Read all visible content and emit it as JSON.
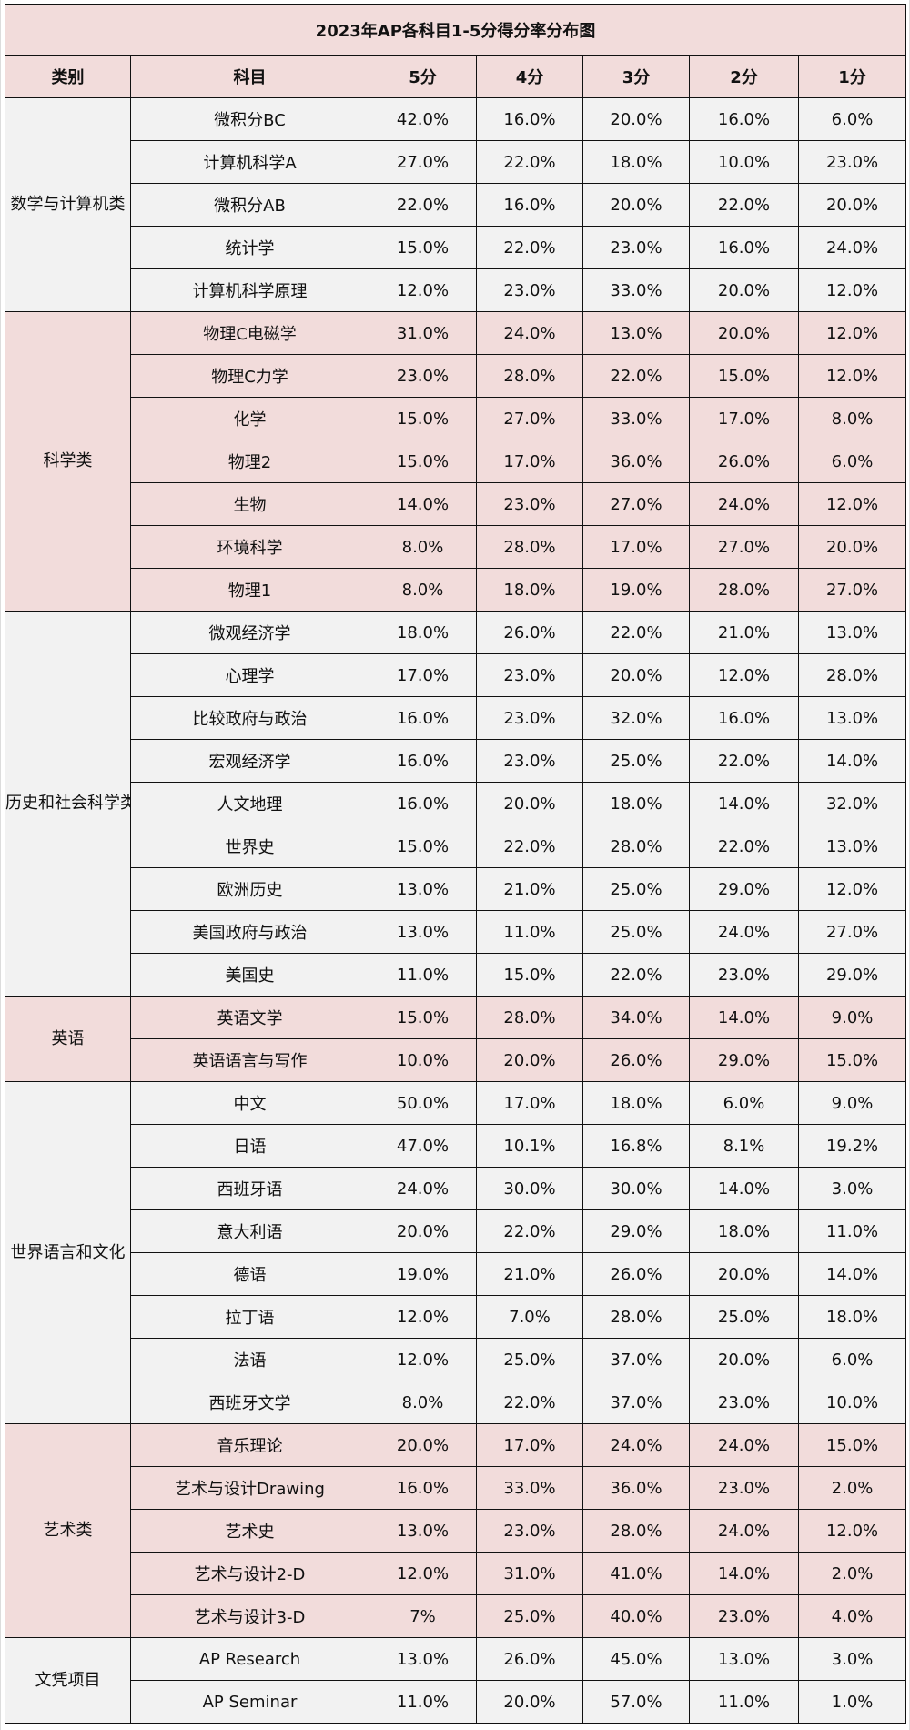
{
  "table": {
    "title": "2023年AP各科目1-5分得分率分布图",
    "headers": [
      "类别",
      "科目",
      "5分",
      "4分",
      "3分",
      "2分",
      "1分"
    ],
    "colors": {
      "pink": "#f2dcdb",
      "gray": "#f2f2f2",
      "border": "#111111"
    },
    "groups": [
      {
        "category": "数学与计算机类",
        "shade": "gray",
        "rows": [
          {
            "subject": "微积分BC",
            "s5": "42.0%",
            "s4": "16.0%",
            "s3": "20.0%",
            "s2": "16.0%",
            "s1": "6.0%"
          },
          {
            "subject": "计算机科学A",
            "s5": "27.0%",
            "s4": "22.0%",
            "s3": "18.0%",
            "s2": "10.0%",
            "s1": "23.0%"
          },
          {
            "subject": "微积分AB",
            "s5": "22.0%",
            "s4": "16.0%",
            "s3": "20.0%",
            "s2": "22.0%",
            "s1": "20.0%"
          },
          {
            "subject": "统计学",
            "s5": "15.0%",
            "s4": "22.0%",
            "s3": "23.0%",
            "s2": "16.0%",
            "s1": "24.0%"
          },
          {
            "subject": "计算机科学原理",
            "s5": "12.0%",
            "s4": "23.0%",
            "s3": "33.0%",
            "s2": "20.0%",
            "s1": "12.0%"
          }
        ]
      },
      {
        "category": "科学类",
        "shade": "pink",
        "rows": [
          {
            "subject": "物理C电磁学",
            "s5": "31.0%",
            "s4": "24.0%",
            "s3": "13.0%",
            "s2": "20.0%",
            "s1": "12.0%"
          },
          {
            "subject": "物理C力学",
            "s5": "23.0%",
            "s4": "28.0%",
            "s3": "22.0%",
            "s2": "15.0%",
            "s1": "12.0%"
          },
          {
            "subject": "化学",
            "s5": "15.0%",
            "s4": "27.0%",
            "s3": "33.0%",
            "s2": "17.0%",
            "s1": "8.0%"
          },
          {
            "subject": "物理2",
            "s5": "15.0%",
            "s4": "17.0%",
            "s3": "36.0%",
            "s2": "26.0%",
            "s1": "6.0%"
          },
          {
            "subject": "生物",
            "s5": "14.0%",
            "s4": "23.0%",
            "s3": "27.0%",
            "s2": "24.0%",
            "s1": "12.0%"
          },
          {
            "subject": "环境科学",
            "s5": "8.0%",
            "s4": "28.0%",
            "s3": "17.0%",
            "s2": "27.0%",
            "s1": "20.0%"
          },
          {
            "subject": "物理1",
            "s5": "8.0%",
            "s4": "18.0%",
            "s3": "19.0%",
            "s2": "28.0%",
            "s1": "27.0%"
          }
        ]
      },
      {
        "category": "历史和社会科学类",
        "shade": "gray",
        "rows": [
          {
            "subject": "微观经济学",
            "s5": "18.0%",
            "s4": "26.0%",
            "s3": "22.0%",
            "s2": "21.0%",
            "s1": "13.0%"
          },
          {
            "subject": "心理学",
            "s5": "17.0%",
            "s4": "23.0%",
            "s3": "20.0%",
            "s2": "12.0%",
            "s1": "28.0%"
          },
          {
            "subject": "比较政府与政治",
            "s5": "16.0%",
            "s4": "23.0%",
            "s3": "32.0%",
            "s2": "16.0%",
            "s1": "13.0%"
          },
          {
            "subject": "宏观经济学",
            "s5": "16.0%",
            "s4": "23.0%",
            "s3": "25.0%",
            "s2": "22.0%",
            "s1": "14.0%"
          },
          {
            "subject": "人文地理",
            "s5": "16.0%",
            "s4": "20.0%",
            "s3": "18.0%",
            "s2": "14.0%",
            "s1": "32.0%"
          },
          {
            "subject": "世界史",
            "s5": "15.0%",
            "s4": "22.0%",
            "s3": "28.0%",
            "s2": "22.0%",
            "s1": "13.0%"
          },
          {
            "subject": "欧洲历史",
            "s5": "13.0%",
            "s4": "21.0%",
            "s3": "25.0%",
            "s2": "29.0%",
            "s1": "12.0%"
          },
          {
            "subject": "美国政府与政治",
            "s5": "13.0%",
            "s4": "11.0%",
            "s3": "25.0%",
            "s2": "24.0%",
            "s1": "27.0%"
          },
          {
            "subject": "美国史",
            "s5": "11.0%",
            "s4": "15.0%",
            "s3": "22.0%",
            "s2": "23.0%",
            "s1": "29.0%"
          }
        ]
      },
      {
        "category": "英语",
        "shade": "pink",
        "rows": [
          {
            "subject": "英语文学",
            "s5": "15.0%",
            "s4": "28.0%",
            "s3": "34.0%",
            "s2": "14.0%",
            "s1": "9.0%"
          },
          {
            "subject": "英语语言与写作",
            "s5": "10.0%",
            "s4": "20.0%",
            "s3": "26.0%",
            "s2": "29.0%",
            "s1": "15.0%"
          }
        ]
      },
      {
        "category": "世界语言和文化",
        "shade": "gray",
        "rows": [
          {
            "subject": "中文",
            "s5": "50.0%",
            "s4": "17.0%",
            "s3": "18.0%",
            "s2": "6.0%",
            "s1": "9.0%"
          },
          {
            "subject": "日语",
            "s5": "47.0%",
            "s4": "10.1%",
            "s3": "16.8%",
            "s2": "8.1%",
            "s1": "19.2%"
          },
          {
            "subject": "西班牙语",
            "s5": "24.0%",
            "s4": "30.0%",
            "s3": "30.0%",
            "s2": "14.0%",
            "s1": "3.0%"
          },
          {
            "subject": "意大利语",
            "s5": "20.0%",
            "s4": "22.0%",
            "s3": "29.0%",
            "s2": "18.0%",
            "s1": "11.0%"
          },
          {
            "subject": "德语",
            "s5": "19.0%",
            "s4": "21.0%",
            "s3": "26.0%",
            "s2": "20.0%",
            "s1": "14.0%"
          },
          {
            "subject": "拉丁语",
            "s5": "12.0%",
            "s4": "7.0%",
            "s3": "28.0%",
            "s2": "25.0%",
            "s1": "18.0%"
          },
          {
            "subject": "法语",
            "s5": "12.0%",
            "s4": "25.0%",
            "s3": "37.0%",
            "s2": "20.0%",
            "s1": "6.0%"
          },
          {
            "subject": "西班牙文学",
            "s5": "8.0%",
            "s4": "22.0%",
            "s3": "37.0%",
            "s2": "23.0%",
            "s1": "10.0%"
          }
        ]
      },
      {
        "category": "艺术类",
        "shade": "pink",
        "rows": [
          {
            "subject": "音乐理论",
            "s5": "20.0%",
            "s4": "17.0%",
            "s3": "24.0%",
            "s2": "24.0%",
            "s1": "15.0%"
          },
          {
            "subject": "艺术与设计Drawing",
            "s5": "16.0%",
            "s4": "33.0%",
            "s3": "36.0%",
            "s2": "23.0%",
            "s1": "2.0%"
          },
          {
            "subject": "艺术史",
            "s5": "13.0%",
            "s4": "23.0%",
            "s3": "28.0%",
            "s2": "24.0%",
            "s1": "12.0%"
          },
          {
            "subject": "艺术与设计2-D",
            "s5": "12.0%",
            "s4": "31.0%",
            "s3": "41.0%",
            "s2": "14.0%",
            "s1": "2.0%"
          },
          {
            "subject": "艺术与设计3-D",
            "s5": "7%",
            "s4": "25.0%",
            "s3": "40.0%",
            "s2": "23.0%",
            "s1": "4.0%"
          }
        ]
      },
      {
        "category": "文凭项目",
        "shade": "gray",
        "rows": [
          {
            "subject": "AP Research",
            "s5": "13.0%",
            "s4": "26.0%",
            "s3": "45.0%",
            "s2": "13.0%",
            "s1": "3.0%"
          },
          {
            "subject": "AP Seminar",
            "s5": "11.0%",
            "s4": "20.0%",
            "s3": "57.0%",
            "s2": "11.0%",
            "s1": "1.0%"
          }
        ]
      }
    ]
  }
}
